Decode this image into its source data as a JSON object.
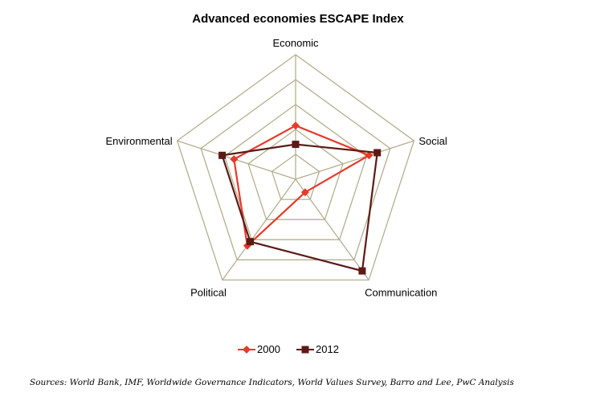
{
  "chart_data": {
    "type": "radar",
    "title": "Advanced economies ESCAPE Index",
    "axes": [
      "Economic",
      "Social",
      "Communication",
      "Political",
      "Environmental"
    ],
    "range": [
      0,
      5
    ],
    "grid": true,
    "legend": "bottom",
    "series": [
      {
        "name": "2000",
        "color": "#e8392a",
        "marker": "diamond",
        "values": [
          2.15,
          3.1,
          0.65,
          3.3,
          2.6
        ]
      },
      {
        "name": "2012",
        "color": "#5b1a14",
        "marker": "square",
        "values": [
          1.4,
          3.45,
          4.55,
          3.1,
          3.1
        ]
      }
    ]
  },
  "source_note": "Sources: World Bank, IMF, Worldwide Governance Indicators, World Values Survey, Barro and Lee, PwC Analysis"
}
